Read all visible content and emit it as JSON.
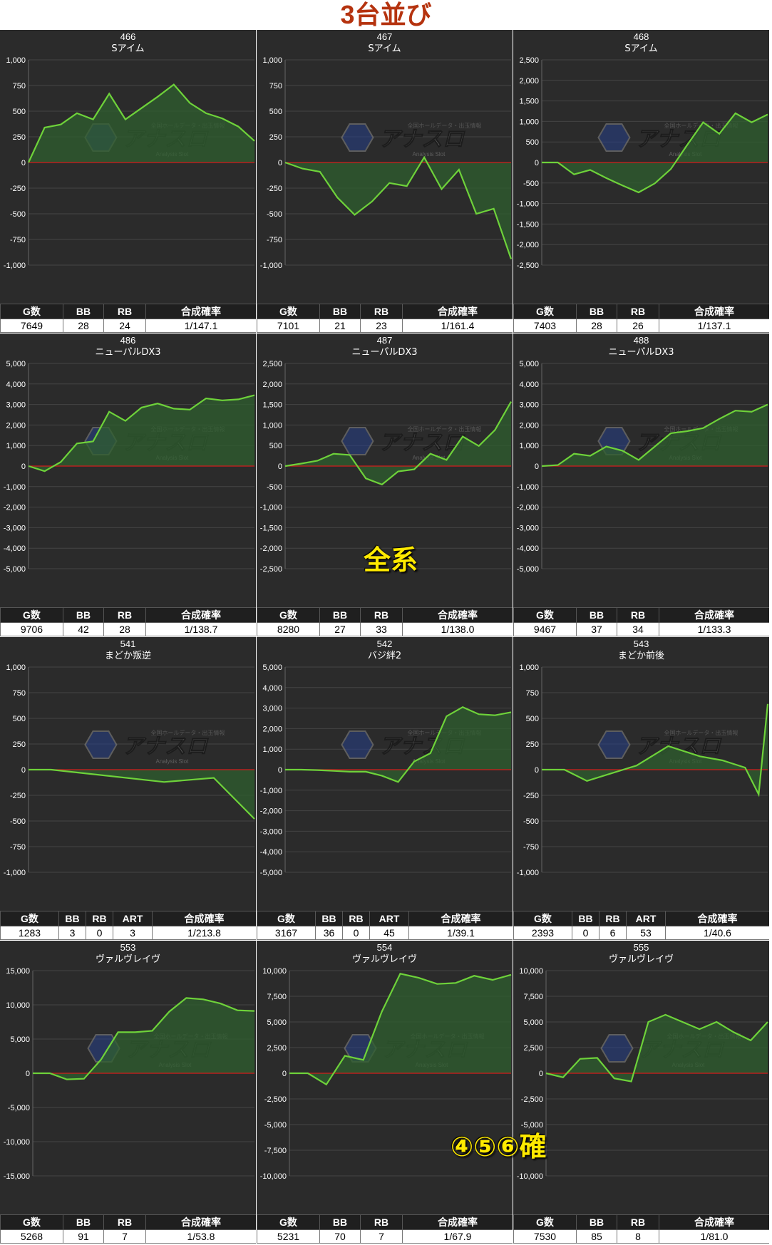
{
  "page_title": "3台並び",
  "overlays": {
    "zenkei": "全系",
    "kaku": "④⑤⑥確"
  },
  "watermark": {
    "brand": "アナスロ",
    "sub": "Analysis Slot",
    "tagline": "全国ホールデータ・出玉情報"
  },
  "colors": {
    "title": "#b5330f",
    "line": "#6ed23a",
    "fill": "#2f5f2f",
    "zero": "#d31c1c",
    "panel": "#2b2b2b",
    "overlay": "#ffea00"
  },
  "chart_data": [
    {
      "type": "area",
      "machine_no": "466",
      "machine": "Sアイム",
      "ylim": [
        -1000,
        1000
      ],
      "yticks": [
        "1,000",
        "750",
        "500",
        "250",
        "0",
        "-250",
        "-500",
        "-750",
        "-1,000"
      ],
      "values": [
        0,
        340,
        370,
        480,
        420,
        670,
        420,
        530,
        640,
        760,
        580,
        480,
        430,
        350,
        210
      ],
      "stats_headers": [
        "G数",
        "BB",
        "RB",
        "合成確率"
      ],
      "stats_values": [
        "7649",
        "28",
        "24",
        "1/147.1"
      ]
    },
    {
      "type": "area",
      "machine_no": "467",
      "machine": "Sアイム",
      "ylim": [
        -1000,
        1000
      ],
      "yticks": [
        "1,000",
        "750",
        "500",
        "250",
        "0",
        "-250",
        "-500",
        "-750",
        "-1,000"
      ],
      "values": [
        0,
        -60,
        -90,
        -340,
        -510,
        -380,
        -200,
        -230,
        50,
        -260,
        -70,
        -500,
        -450,
        -940
      ],
      "stats_headers": [
        "G数",
        "BB",
        "RB",
        "合成確率"
      ],
      "stats_values": [
        "7101",
        "21",
        "23",
        "1/161.4"
      ]
    },
    {
      "type": "area",
      "machine_no": "468",
      "machine": "Sアイム",
      "ylim": [
        -2500,
        2500
      ],
      "yticks": [
        "2,500",
        "2,000",
        "1,500",
        "1,000",
        "500",
        "0",
        "-500",
        "-1,000",
        "-1,500",
        "-2,000",
        "-2,500"
      ],
      "values": [
        0,
        0,
        -290,
        -180,
        -380,
        -560,
        -730,
        -510,
        -160,
        420,
        980,
        700,
        1200,
        980,
        1170
      ],
      "stats_headers": [
        "G数",
        "BB",
        "RB",
        "合成確率"
      ],
      "stats_values": [
        "7403",
        "28",
        "26",
        "1/137.1"
      ]
    },
    {
      "type": "area",
      "machine_no": "486",
      "machine": "ニューパルDX3",
      "ylim": [
        -5000,
        5000
      ],
      "yticks": [
        "5,000",
        "4,000",
        "3,000",
        "2,000",
        "1,000",
        "0",
        "-1,000",
        "-2,000",
        "-3,000",
        "-4,000",
        "-5,000"
      ],
      "values": [
        0,
        -250,
        200,
        1100,
        1200,
        2650,
        2200,
        2850,
        3050,
        2800,
        2750,
        3300,
        3200,
        3250,
        3450
      ],
      "stats_headers": [
        "G数",
        "BB",
        "RB",
        "合成確率"
      ],
      "stats_values": [
        "9706",
        "42",
        "28",
        "1/138.7"
      ]
    },
    {
      "type": "area",
      "machine_no": "487",
      "machine": "ニューパルDX3",
      "ylim": [
        -2500,
        2500
      ],
      "yticks": [
        "2,500",
        "2,000",
        "1,500",
        "1,000",
        "500",
        "0",
        "-500",
        "-1,000",
        "-1,500",
        "-2,000",
        "-2,500"
      ],
      "values": [
        0,
        60,
        130,
        300,
        270,
        -300,
        -450,
        -130,
        -80,
        300,
        150,
        720,
        490,
        880,
        1570
      ],
      "stats_headers": [
        "G数",
        "BB",
        "RB",
        "合成確率"
      ],
      "stats_values": [
        "8280",
        "27",
        "33",
        "1/138.0"
      ]
    },
    {
      "type": "area",
      "machine_no": "488",
      "machine": "ニューパルDX3",
      "ylim": [
        -5000,
        5000
      ],
      "yticks": [
        "5,000",
        "4,000",
        "3,000",
        "2,000",
        "1,000",
        "0",
        "-1,000",
        "-2,000",
        "-3,000",
        "-4,000",
        "-5,000"
      ],
      "values": [
        0,
        50,
        600,
        500,
        950,
        750,
        300,
        950,
        1600,
        1700,
        1850,
        2300,
        2700,
        2650,
        3000
      ],
      "stats_headers": [
        "G数",
        "BB",
        "RB",
        "合成確率"
      ],
      "stats_values": [
        "9467",
        "37",
        "34",
        "1/133.3"
      ]
    },
    {
      "type": "area",
      "machine_no": "541",
      "machine": "まどか叛逆",
      "ylim": [
        -1000,
        1000
      ],
      "yticks": [
        "1,000",
        "750",
        "500",
        "250",
        "0",
        "-250",
        "-500",
        "-750",
        "-1,000"
      ],
      "values": [
        0,
        0,
        -120,
        -80,
        -480
      ],
      "x": [
        0,
        0.1,
        0.6,
        0.82,
        1.0
      ],
      "stats_headers": [
        "G数",
        "BB",
        "RB",
        "ART",
        "合成確率"
      ],
      "stats_values": [
        "1283",
        "3",
        "0",
        "3",
        "1/213.8"
      ]
    },
    {
      "type": "area",
      "machine_no": "542",
      "machine": "バジ絆2",
      "ylim": [
        -5000,
        5000
      ],
      "yticks": [
        "5,000",
        "4,000",
        "3,000",
        "2,000",
        "1,000",
        "0",
        "-1,000",
        "-2,000",
        "-3,000",
        "-4,000",
        "-5,000"
      ],
      "values": [
        0,
        0,
        -20,
        -60,
        -100,
        -100,
        -300,
        -600,
        400,
        800,
        2600,
        3050,
        2700,
        2650,
        2800
      ],
      "stats_headers": [
        "G数",
        "BB",
        "RB",
        "ART",
        "合成確率"
      ],
      "stats_values": [
        "3167",
        "36",
        "0",
        "45",
        "1/39.1"
      ]
    },
    {
      "type": "area",
      "machine_no": "543",
      "machine": "まどか前後",
      "ylim": [
        -1000,
        1000
      ],
      "yticks": [
        "1,000",
        "750",
        "500",
        "250",
        "0",
        "-250",
        "-500",
        "-750",
        "-1,000"
      ],
      "values": [
        0,
        0,
        -110,
        40,
        230,
        130,
        90,
        20,
        -240,
        640
      ],
      "x": [
        0,
        0.1,
        0.2,
        0.42,
        0.56,
        0.7,
        0.8,
        0.9,
        0.96,
        1.0
      ],
      "stats_headers": [
        "G数",
        "BB",
        "RB",
        "ART",
        "合成確率"
      ],
      "stats_values": [
        "2393",
        "0",
        "6",
        "53",
        "1/40.6"
      ]
    },
    {
      "type": "area",
      "machine_no": "553",
      "machine": "ヴァルヴレイヴ",
      "ylim": [
        -15000,
        15000
      ],
      "yticks": [
        "15,000",
        "10,000",
        "5,000",
        "0",
        "-5,000",
        "-10,000",
        "-15,000"
      ],
      "values": [
        0,
        0,
        -900,
        -800,
        2000,
        6000,
        6000,
        6200,
        9000,
        11000,
        10800,
        10200,
        9200,
        9100
      ],
      "stats_headers": [
        "G数",
        "BB",
        "RB",
        "合成確率"
      ],
      "stats_values": [
        "5268",
        "91",
        "7",
        "1/53.8"
      ]
    },
    {
      "type": "area",
      "machine_no": "554",
      "machine": "ヴァルヴレイヴ",
      "ylim": [
        -10000,
        10000
      ],
      "yticks": [
        "10,000",
        "7,500",
        "5,000",
        "2,500",
        "0",
        "-2,500",
        "-5,000",
        "-7,500",
        "-10,000"
      ],
      "values": [
        0,
        0,
        -1100,
        1700,
        1300,
        6000,
        9700,
        9300,
        8700,
        8800,
        9500,
        9100,
        9600
      ],
      "stats_headers": [
        "G数",
        "BB",
        "RB",
        "合成確率"
      ],
      "stats_values": [
        "5231",
        "70",
        "7",
        "1/67.9"
      ]
    },
    {
      "type": "area",
      "machine_no": "555",
      "machine": "ヴァルヴレイヴ",
      "ylim": [
        -10000,
        10000
      ],
      "yticks": [
        "10,000",
        "7,500",
        "5,000",
        "2,500",
        "0",
        "-2,500",
        "-5,000",
        "-7,500",
        "-10,000"
      ],
      "values": [
        0,
        -400,
        1400,
        1500,
        -500,
        -800,
        5000,
        5700,
        5000,
        4300,
        5000,
        4000,
        3200,
        5000
      ],
      "stats_headers": [
        "G数",
        "BB",
        "RB",
        "合成確率"
      ],
      "stats_values": [
        "7530",
        "85",
        "8",
        "1/81.0"
      ]
    }
  ]
}
